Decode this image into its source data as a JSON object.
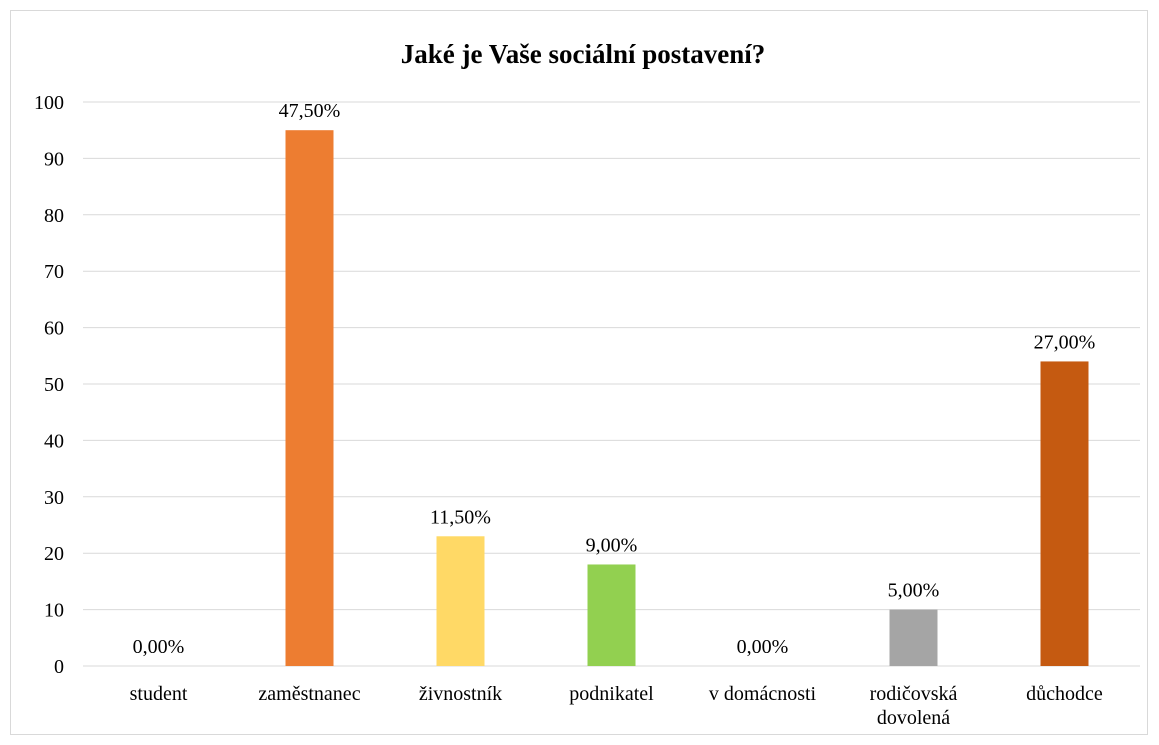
{
  "chart_data": {
    "type": "bar",
    "title": "Jaké je Vaše sociální postavení?",
    "xlabel": "",
    "ylabel": "",
    "ylim": [
      0,
      100
    ],
    "yticks": [
      0,
      10,
      20,
      30,
      40,
      50,
      60,
      70,
      80,
      90,
      100
    ],
    "grid": true,
    "legend": "none",
    "categories": [
      [
        "student"
      ],
      [
        "zaměstnanec"
      ],
      [
        "živnostník"
      ],
      [
        "podnikatel"
      ],
      [
        "v domácnosti"
      ],
      [
        "rodičovská",
        "dovolená"
      ],
      [
        "důchodce"
      ]
    ],
    "values": [
      0,
      95,
      23,
      18,
      0,
      10,
      54
    ],
    "data_labels": [
      "0,00%",
      "47,50%",
      "11,50%",
      "9,00%",
      "0,00%",
      "5,00%",
      "27,00%"
    ],
    "colors": [
      "#4472c4",
      "#ed7d31",
      "#ffd966",
      "#92d050",
      "#5b9bd5",
      "#a5a5a5",
      "#c55a11"
    ]
  }
}
